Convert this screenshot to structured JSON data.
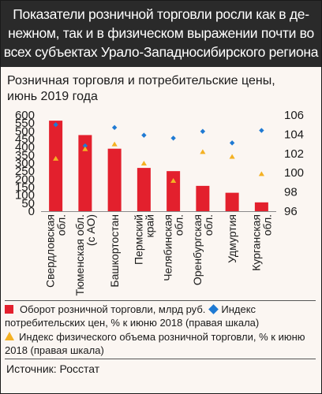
{
  "header": {
    "title_lines": [
      "Показатели розничной торговли росли как в де-",
      "нежном, так и в физическом выражении почти во",
      "всех субъектах Урало-Западносибирского региона"
    ]
  },
  "chart_data": {
    "type": "bar",
    "subtitle_lines": [
      "Розничная торговля и потребительские цены,",
      "июнь 2019 года"
    ],
    "categories": [
      [
        "Свердловская",
        "обл."
      ],
      [
        "Тюменская обл.",
        "(с АО)"
      ],
      [
        "Башкортостан"
      ],
      [
        "Пермский",
        "край"
      ],
      [
        "Челябинская",
        "обл."
      ],
      [
        "Оренбургская",
        "обл."
      ],
      [
        "Удмуртия"
      ],
      [
        "Курганская",
        "обл."
      ]
    ],
    "left_axis": {
      "ylim": [
        0,
        600
      ],
      "ticks": [
        "0",
        "50",
        "100",
        "150",
        "200",
        "250",
        "300",
        "350",
        "400",
        "450",
        "500",
        "550",
        "600"
      ]
    },
    "right_axis": {
      "ylim": [
        96,
        106
      ],
      "ticks": [
        "96",
        "98",
        "100",
        "102",
        "104",
        "106"
      ]
    },
    "series": [
      {
        "name": "Оборот розничной торговли,  млрд руб.",
        "kind": "bar",
        "axis": "left",
        "color": "#e3202d",
        "values": [
          565,
          475,
          390,
          270,
          250,
          158,
          115,
          55
        ]
      },
      {
        "name": "Индекс потребительских цен, % к июню 2018 (правая шкала)",
        "kind": "diamond",
        "axis": "right",
        "color": "#1f7ad3",
        "values": [
          105.0,
          102.8,
          104.7,
          103.9,
          103.6,
          104.3,
          103.1,
          104.4
        ]
      },
      {
        "name": "Индекс физического объема розничной торговли, % к июню 2018 (правая шкала)",
        "kind": "triangle",
        "axis": "right",
        "color": "#f4b123",
        "values": [
          101.5,
          102.5,
          103.0,
          101.0,
          99.2,
          102.2,
          101.7,
          99.9
        ]
      }
    ]
  },
  "legend": {
    "line1": "Оборот розничной торговли,  млрд руб.",
    "line1b": "Индекс",
    "line2": "потребительских цен, % к июню 2018 (правая шкала)",
    "line3": "Индекс физического объема розничной торговли, % к июню",
    "line4": "2018 (правая шкала)"
  },
  "source": "Источник: Росстат"
}
